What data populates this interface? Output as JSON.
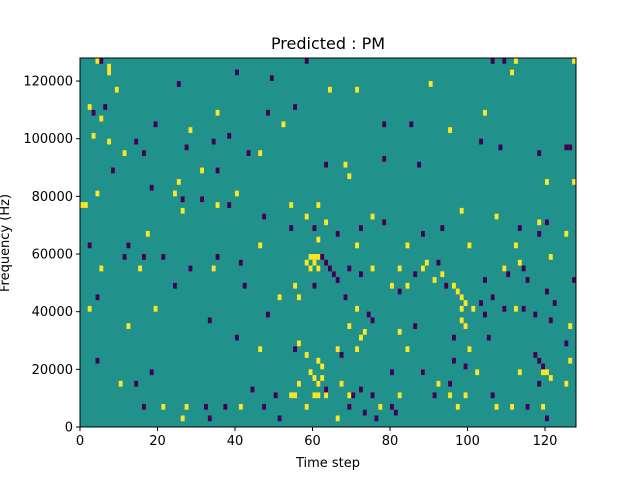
{
  "chart_data": {
    "type": "heatmap",
    "title": "Predicted : PM",
    "xlabel": "Time step",
    "ylabel": "Frequency (Hz)",
    "xlim": [
      0,
      128
    ],
    "ylim": [
      0,
      128000
    ],
    "x_ticks": [
      0,
      20,
      40,
      60,
      80,
      100,
      120
    ],
    "y_ticks": [
      0,
      20000,
      40000,
      60000,
      80000,
      100000,
      120000
    ],
    "grid": false,
    "colors": {
      "background": "#21918c",
      "high": "#fde725",
      "low": "#440154"
    },
    "high_cells": [
      [
        4,
        126000
      ],
      [
        7,
        124000
      ],
      [
        7,
        122000
      ],
      [
        9,
        116000
      ],
      [
        2,
        110000
      ],
      [
        5,
        106000
      ],
      [
        3,
        100000
      ],
      [
        28,
        102000
      ],
      [
        7,
        98000
      ],
      [
        11,
        94000
      ],
      [
        46,
        94000
      ],
      [
        52,
        104000
      ],
      [
        35,
        108000
      ],
      [
        64,
        116000
      ],
      [
        71,
        116000
      ],
      [
        95,
        102000
      ],
      [
        90,
        118000
      ],
      [
        104,
        108000
      ],
      [
        111,
        122000
      ],
      [
        112,
        126000
      ],
      [
        127,
        126000
      ],
      [
        120,
        84000
      ],
      [
        127,
        84000
      ],
      [
        31,
        88000
      ],
      [
        68,
        90000
      ],
      [
        69,
        86000
      ],
      [
        25,
        84000
      ],
      [
        4,
        80000
      ],
      [
        24,
        80000
      ],
      [
        40,
        80000
      ],
      [
        0,
        76000
      ],
      [
        1,
        76000
      ],
      [
        26,
        74000
      ],
      [
        35,
        76000
      ],
      [
        54,
        76000
      ],
      [
        61,
        76000
      ],
      [
        58,
        72000
      ],
      [
        63,
        70000
      ],
      [
        75,
        72000
      ],
      [
        98,
        74000
      ],
      [
        107,
        72000
      ],
      [
        118,
        70000
      ],
      [
        125,
        66000
      ],
      [
        17,
        66000
      ],
      [
        61,
        64000
      ],
      [
        46,
        62000
      ],
      [
        71,
        62000
      ],
      [
        84,
        62000
      ],
      [
        100,
        62000
      ],
      [
        112,
        62000
      ],
      [
        59,
        58000
      ],
      [
        60,
        58000
      ],
      [
        61,
        58000
      ],
      [
        58,
        56000
      ],
      [
        60,
        56000
      ],
      [
        59,
        54000
      ],
      [
        61,
        54000
      ],
      [
        5,
        54000
      ],
      [
        15,
        54000
      ],
      [
        34,
        54000
      ],
      [
        88,
        54000
      ],
      [
        89,
        56000
      ],
      [
        82,
        54000
      ],
      [
        75,
        54000
      ],
      [
        109,
        54000
      ],
      [
        113,
        56000
      ],
      [
        121,
        58000
      ],
      [
        91,
        50000
      ],
      [
        80,
        48000
      ],
      [
        84,
        48000
      ],
      [
        93,
        52000
      ],
      [
        55,
        48000
      ],
      [
        51,
        44000
      ],
      [
        56,
        44000
      ],
      [
        96,
        48000
      ],
      [
        97,
        46000
      ],
      [
        98,
        44000
      ],
      [
        99,
        42000
      ],
      [
        98,
        40000
      ],
      [
        2,
        40000
      ],
      [
        19,
        40000
      ],
      [
        71,
        40000
      ],
      [
        101,
        40000
      ],
      [
        112,
        40000
      ],
      [
        98,
        36000
      ],
      [
        99,
        34000
      ],
      [
        126,
        34000
      ],
      [
        12,
        34000
      ],
      [
        69,
        34000
      ],
      [
        73,
        32000
      ],
      [
        82,
        32000
      ],
      [
        72,
        30000
      ],
      [
        56,
        28000
      ],
      [
        71,
        26000
      ],
      [
        58,
        24000
      ],
      [
        46,
        26000
      ],
      [
        84,
        26000
      ],
      [
        100,
        26000
      ],
      [
        66,
        26000
      ],
      [
        126,
        22000
      ],
      [
        61,
        22000
      ],
      [
        62,
        20000
      ],
      [
        59,
        18000
      ],
      [
        88,
        18000
      ],
      [
        102,
        18000
      ],
      [
        119,
        18000
      ],
      [
        120,
        18000
      ],
      [
        113,
        18000
      ],
      [
        121,
        16000
      ],
      [
        60,
        16000
      ],
      [
        62,
        16000
      ],
      [
        10,
        14000
      ],
      [
        56,
        14000
      ],
      [
        61,
        14000
      ],
      [
        67,
        14000
      ],
      [
        92,
        14000
      ],
      [
        125,
        14000
      ],
      [
        54,
        10000
      ],
      [
        55,
        10000
      ],
      [
        60,
        10000
      ],
      [
        61,
        10000
      ],
      [
        63,
        10000
      ],
      [
        69,
        10000
      ],
      [
        82,
        10000
      ],
      [
        95,
        10000
      ],
      [
        99,
        10000
      ],
      [
        27,
        6000
      ],
      [
        21,
        6000
      ],
      [
        41,
        6000
      ],
      [
        58,
        6000
      ],
      [
        107,
        6000
      ],
      [
        111,
        6000
      ],
      [
        119,
        6000
      ],
      [
        66,
        2000
      ],
      [
        26,
        2000
      ],
      [
        97,
        6000
      ],
      [
        77,
        6000
      ]
    ],
    "low_cells": [
      [
        5,
        126000
      ],
      [
        58,
        126000
      ],
      [
        106,
        126000
      ],
      [
        109,
        126000
      ],
      [
        40,
        122000
      ],
      [
        25,
        118000
      ],
      [
        49,
        120000
      ],
      [
        48,
        108000
      ],
      [
        55,
        110000
      ],
      [
        3,
        108000
      ],
      [
        6,
        110000
      ],
      [
        78,
        104000
      ],
      [
        85,
        104000
      ],
      [
        103,
        98000
      ],
      [
        19,
        104000
      ],
      [
        14,
        98000
      ],
      [
        16,
        94000
      ],
      [
        34,
        98000
      ],
      [
        38,
        100000
      ],
      [
        27,
        96000
      ],
      [
        43,
        94000
      ],
      [
        63,
        90000
      ],
      [
        78,
        92000
      ],
      [
        87,
        90000
      ],
      [
        118,
        94000
      ],
      [
        125,
        96000
      ],
      [
        126,
        96000
      ],
      [
        8,
        88000
      ],
      [
        35,
        88000
      ],
      [
        108,
        96000
      ],
      [
        18,
        82000
      ],
      [
        26,
        78000
      ],
      [
        31,
        78000
      ],
      [
        38,
        76000
      ],
      [
        47,
        72000
      ],
      [
        54,
        68000
      ],
      [
        60,
        68000
      ],
      [
        66,
        66000
      ],
      [
        72,
        68000
      ],
      [
        78,
        70000
      ],
      [
        88,
        66000
      ],
      [
        93,
        68000
      ],
      [
        113,
        68000
      ],
      [
        118,
        66000
      ],
      [
        120,
        70000
      ],
      [
        2,
        62000
      ],
      [
        11,
        58000
      ],
      [
        12,
        62000
      ],
      [
        16,
        58000
      ],
      [
        21,
        58000
      ],
      [
        28,
        54000
      ],
      [
        35,
        58000
      ],
      [
        41,
        56000
      ],
      [
        62,
        58000
      ],
      [
        63,
        56000
      ],
      [
        64,
        54000
      ],
      [
        65,
        52000
      ],
      [
        66,
        50000
      ],
      [
        69,
        54000
      ],
      [
        72,
        52000
      ],
      [
        86,
        52000
      ],
      [
        92,
        56000
      ],
      [
        104,
        50000
      ],
      [
        110,
        52000
      ],
      [
        114,
        54000
      ],
      [
        115,
        50000
      ],
      [
        120,
        46000
      ],
      [
        122,
        42000
      ],
      [
        127,
        50000
      ],
      [
        4,
        44000
      ],
      [
        24,
        48000
      ],
      [
        42,
        48000
      ],
      [
        60,
        48000
      ],
      [
        68,
        44000
      ],
      [
        82,
        46000
      ],
      [
        94,
        48000
      ],
      [
        103,
        42000
      ],
      [
        104,
        38000
      ],
      [
        106,
        44000
      ],
      [
        109,
        40000
      ],
      [
        114,
        40000
      ],
      [
        117,
        38000
      ],
      [
        121,
        36000
      ],
      [
        33,
        36000
      ],
      [
        48,
        38000
      ],
      [
        40,
        30000
      ],
      [
        74,
        38000
      ],
      [
        75,
        36000
      ],
      [
        86,
        34000
      ],
      [
        96,
        30000
      ],
      [
        105,
        30000
      ],
      [
        117,
        24000
      ],
      [
        125,
        28000
      ],
      [
        118,
        22000
      ],
      [
        119,
        20000
      ],
      [
        118,
        14000
      ],
      [
        96,
        22000
      ],
      [
        99,
        20000
      ],
      [
        80,
        18000
      ],
      [
        67,
        24000
      ],
      [
        55,
        26000
      ],
      [
        18,
        18000
      ],
      [
        14,
        14000
      ],
      [
        4,
        22000
      ],
      [
        91,
        10000
      ],
      [
        95,
        14000
      ],
      [
        88,
        18000
      ],
      [
        44,
        12000
      ],
      [
        50,
        10000
      ],
      [
        70,
        10000
      ],
      [
        75,
        10000
      ],
      [
        63,
        12000
      ],
      [
        72,
        12000
      ],
      [
        32,
        6000
      ],
      [
        37,
        6000
      ],
      [
        16,
        6000
      ],
      [
        47,
        6000
      ],
      [
        73,
        4000
      ],
      [
        76,
        2000
      ],
      [
        80,
        6000
      ],
      [
        81,
        4000
      ],
      [
        69,
        6000
      ],
      [
        106,
        10000
      ],
      [
        115,
        6000
      ],
      [
        120,
        2000
      ],
      [
        33,
        2000
      ],
      [
        51,
        2000
      ]
    ]
  }
}
